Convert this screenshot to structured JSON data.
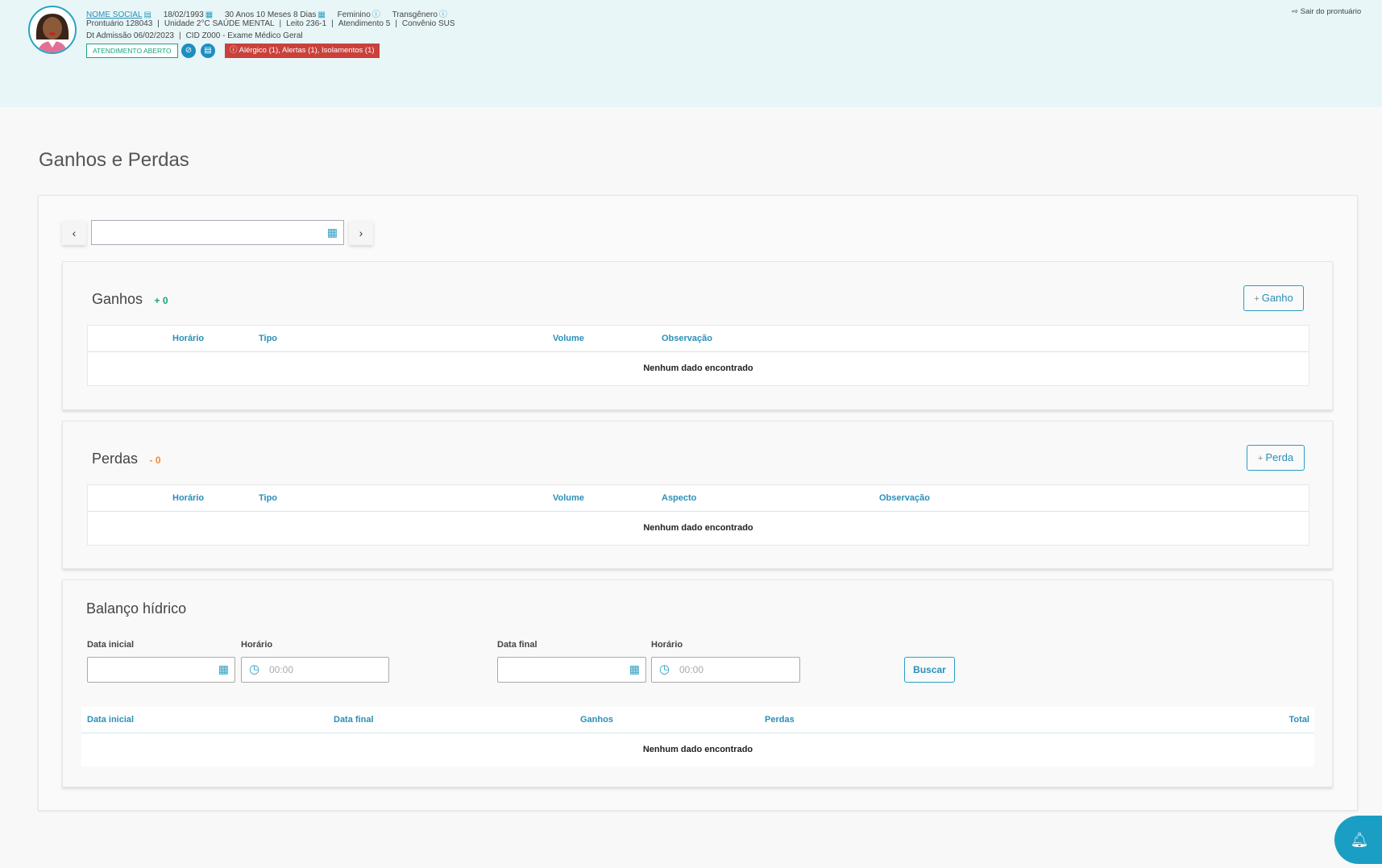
{
  "patient": {
    "name": "NOME SOCIAL",
    "birthdate": "18/02/1993",
    "age": "30 Anos 10 Meses 8 Dias",
    "sex": "Feminino",
    "gender": "Transgênero",
    "line2": [
      "Prontuário 128043",
      "Unidade 2°C SAÚDE MENTAL",
      "Leito 236-1",
      "Atendimento 5",
      "Convênio SUS"
    ],
    "line3": [
      "Dt Admissão 06/02/2023",
      "CID Z000 - Exame Médico Geral"
    ],
    "status": "ATENDIMENTO ABERTO",
    "alerts": "Alérgico (1),  Alertas (1),  Isolamentos (1)"
  },
  "exit_label": "Sair do prontuário",
  "page_title": "Ganhos e Perdas",
  "date_nav": {
    "value": ""
  },
  "ganhos": {
    "title": "Ganhos",
    "count": "+ 0",
    "add_label": "Ganho",
    "columns": [
      "Horário",
      "Tipo",
      "Volume",
      "Observação"
    ],
    "empty": "Nenhum dado encontrado"
  },
  "perdas": {
    "title": "Perdas",
    "count": "- 0",
    "add_label": "Perda",
    "columns": [
      "Horário",
      "Tipo",
      "Volume",
      "Aspecto",
      "Observação"
    ],
    "empty": "Nenhum dado encontrado"
  },
  "balanco": {
    "title": "Balanço hídrico",
    "data_inicial_label": "Data inicial",
    "horario_label": "Horário",
    "data_final_label": "Data final",
    "horario2_label": "Horário",
    "time_placeholder": "00:00",
    "search_label": "Buscar",
    "columns": [
      "Data inicial",
      "Data final",
      "Ganhos",
      "Perdas",
      "Total"
    ],
    "empty": "Nenhum dado encontrado"
  },
  "colors": {
    "accent": "#2a9fc4",
    "header_bg": "#e8f6f8",
    "alert": "#c9413a",
    "gain": "#1aa37f",
    "loss": "#f08a3c"
  }
}
